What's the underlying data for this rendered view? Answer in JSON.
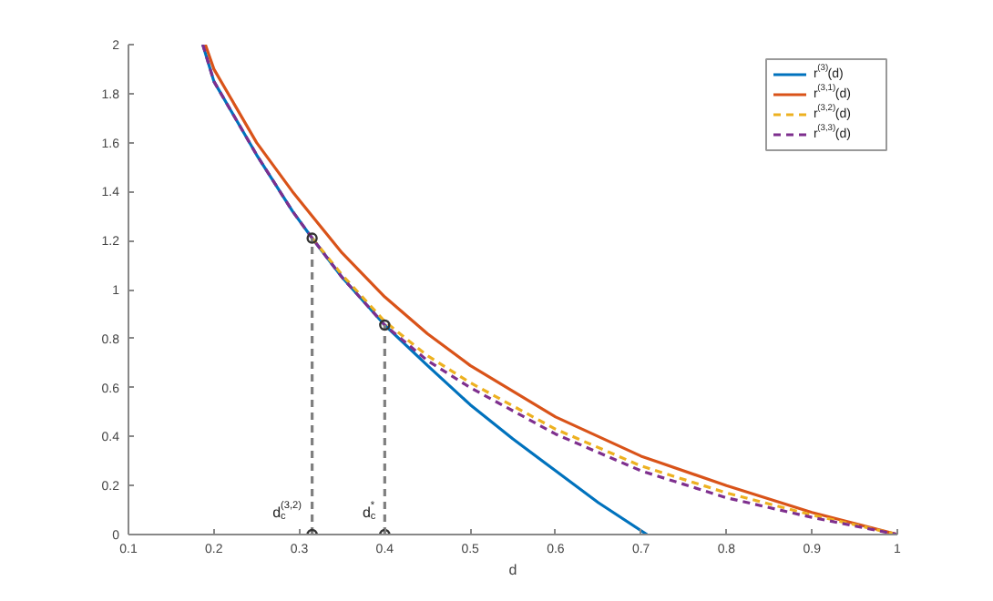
{
  "chart_data": {
    "type": "line",
    "xlabel": "d",
    "xlim": [
      0.1,
      1
    ],
    "ylim": [
      0,
      2
    ],
    "xticks": [
      0.1,
      0.2,
      0.3,
      0.4,
      0.5,
      0.6,
      0.7,
      0.8,
      0.9,
      1
    ],
    "yticks": [
      0,
      0.2,
      0.4,
      0.6,
      0.8,
      1,
      1.2,
      1.4,
      1.6,
      1.8,
      2
    ],
    "grid": false,
    "legend": "top right",
    "line_style": "solid",
    "marker": "none",
    "series": [
      {
        "name": "r$^{(3)}$(d)",
        "color": "#0072bd",
        "x": [
          0.187,
          0.2,
          0.25,
          0.292,
          0.315,
          0.35,
          0.4,
          0.45,
          0.5,
          0.55,
          0.6,
          0.65,
          0.707
        ],
        "values": [
          2,
          1.85,
          1.55,
          1.32,
          1.21,
          1.05,
          0.855,
          0.69,
          0.53,
          0.39,
          0.26,
          0.13,
          0
        ]
      },
      {
        "name": "r$^{(3,1)}$(d)",
        "color": "#d95319",
        "x": [
          0.19,
          0.2,
          0.25,
          0.292,
          0.315,
          0.35,
          0.4,
          0.45,
          0.5,
          0.6,
          0.7,
          0.8,
          0.9,
          1
        ],
        "values": [
          2,
          1.9,
          1.6,
          1.4,
          1.3,
          1.15,
          0.97,
          0.82,
          0.69,
          0.48,
          0.32,
          0.2,
          0.09,
          0
        ]
      },
      {
        "name": "r$^{(3,2)}$(d)",
        "color": "#edb120",
        "line_style": "dashed",
        "x": [
          0.315,
          0.35,
          0.4,
          0.45,
          0.5,
          0.6,
          0.7,
          0.8,
          0.9,
          1
        ],
        "values": [
          1.21,
          1.06,
          0.87,
          0.73,
          0.62,
          0.43,
          0.28,
          0.17,
          0.08,
          0
        ]
      },
      {
        "name": "r$^{(3,3)}$(d)",
        "color": "#7e2f8e",
        "line_style": "dashed",
        "x": [
          0.187,
          0.2,
          0.25,
          0.292,
          0.315,
          0.35,
          0.4,
          0.45,
          0.5,
          0.6,
          0.7,
          0.8,
          0.9,
          1
        ],
        "values": [
          2,
          1.85,
          1.55,
          1.32,
          1.21,
          1.05,
          0.855,
          0.71,
          0.6,
          0.41,
          0.26,
          0.15,
          0.07,
          0
        ]
      },
      {
        "color": "#7f7f7f",
        "line_style": "dashed",
        "marker": "circle",
        "x": [
          0.315,
          0.315
        ],
        "values": [
          0,
          1.21
        ]
      },
      {
        "color": "#7f7f7f",
        "line_style": "dashed",
        "marker": "circle",
        "x": [
          0.4,
          0.4
        ],
        "values": [
          0,
          0.855
        ]
      }
    ],
    "annotations": [
      {
        "text": "d$_{c}$$^{(3,2)}$",
        "x": 0.315,
        "y": 0
      },
      {
        "text": "d$_{c}$$^{*}$",
        "x": 0.4,
        "y": 0
      }
    ]
  }
}
